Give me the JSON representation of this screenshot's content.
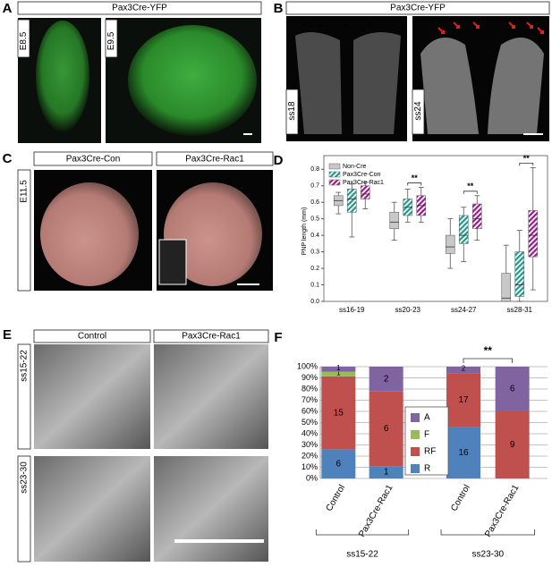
{
  "panels": [
    {
      "letter": "A",
      "title": "Pax3Cre-YFP",
      "images": [
        "E8.5",
        "E9.5"
      ]
    },
    {
      "letter": "B",
      "title": "Pax3Cre-YFP",
      "images": [
        "ss18",
        "ss24"
      ]
    },
    {
      "letter": "C",
      "columns": [
        "Pax3Cre-Con",
        "Pax3Cre-Rac1"
      ],
      "rows": [
        "E11.5"
      ]
    },
    {
      "letter": "E",
      "columns": [
        "Control",
        "Pax3Cre-Rac1"
      ],
      "rows": [
        "ss15-22",
        "ss23-30"
      ]
    }
  ],
  "chart_data": [
    {
      "letter": "D",
      "type": "box",
      "y_label": "PNP length (mm)",
      "categories": [
        "ss16-19",
        "ss20-23",
        "ss24-27",
        "ss28-31"
      ],
      "ylim": [
        0,
        0.85
      ],
      "yticks": [
        {
          "value": 0,
          "label": "0.0"
        },
        0.1,
        0.2,
        0.3,
        0.4,
        0.5,
        0.6,
        0.7,
        0.8
      ],
      "significance": [
        null,
        "**",
        "**",
        "**"
      ],
      "series": [
        {
          "name": "Non-Cre",
          "color": "#c8c8c8",
          "hatch": false,
          "min": [
            0.53,
            0.37,
            0.2,
            0
          ],
          "q1": [
            0.58,
            0.44,
            0.29,
            0
          ],
          "median": [
            0.61,
            0.48,
            0.33,
            0.02
          ],
          "q3": [
            0.64,
            0.54,
            0.4,
            0.17
          ],
          "max": [
            0.66,
            0.6,
            0.5,
            0.34
          ]
        },
        {
          "name": "Pax3Cre-Con",
          "color": "#1f9a8a",
          "hatch": true,
          "min": [
            0.39,
            0.48,
            0.24,
            0
          ],
          "q1": [
            0.54,
            0.52,
            0.35,
            0.03
          ],
          "median": [
            0.62,
            0.57,
            0.4,
            0.1
          ],
          "q3": [
            0.68,
            0.62,
            0.52,
            0.3
          ],
          "max": [
            0.71,
            0.68,
            0.57,
            0.43
          ]
        },
        {
          "name": "Pax3Cre-Rac1",
          "color": "#9a1a8c",
          "hatch": true,
          "min": [
            0.56,
            0.48,
            0.37,
            0.07
          ],
          "q1": [
            0.62,
            0.52,
            0.44,
            0.27
          ],
          "median": [
            0.65,
            0.58,
            0.5,
            0.4
          ],
          "q3": [
            0.7,
            0.64,
            0.59,
            0.55
          ],
          "max": [
            0.72,
            0.69,
            0.64,
            0.81
          ]
        }
      ]
    },
    {
      "letter": "F",
      "type": "stacked_bar",
      "grid": true,
      "categories": [
        "Control",
        "Pax3Cre-Rac1",
        "Control",
        "Pax3Cre-Rac1"
      ],
      "groups": [
        "ss15-22",
        "ss23-30"
      ],
      "ylim": [
        0,
        100
      ],
      "yticks": [
        {
          "value": 0,
          "label": "0%"
        },
        {
          "value": 10,
          "label": "10%"
        },
        {
          "value": 20,
          "label": "20%"
        },
        {
          "value": 30,
          "label": "30%"
        },
        {
          "value": 40,
          "label": "40%"
        },
        {
          "value": 50,
          "label": "50%"
        },
        {
          "value": 60,
          "label": "60%"
        },
        {
          "value": 70,
          "label": "70%"
        },
        {
          "value": 80,
          "label": "80%"
        },
        {
          "value": 90,
          "label": "90%"
        },
        {
          "value": 100,
          "label": "100%"
        }
      ],
      "significance": "**",
      "series": [
        {
          "name": "R",
          "color": "#4f81bd",
          "values": [
            26.1,
            11.1,
            45.7,
            0
          ],
          "counts": [
            6,
            1,
            16,
            null
          ]
        },
        {
          "name": "RF",
          "color": "#c0504d",
          "values": [
            65.2,
            66.7,
            48.6,
            60
          ],
          "counts": [
            15,
            6,
            17,
            9
          ]
        },
        {
          "name": "F",
          "color": "#9bbb59",
          "values": [
            4.3,
            0,
            0,
            0
          ],
          "counts": [
            1,
            null,
            null,
            null
          ]
        },
        {
          "name": "A",
          "color": "#8064a2",
          "values": [
            4.4,
            22.2,
            5.7,
            40
          ],
          "counts": [
            1,
            2,
            2,
            6
          ]
        }
      ]
    }
  ]
}
